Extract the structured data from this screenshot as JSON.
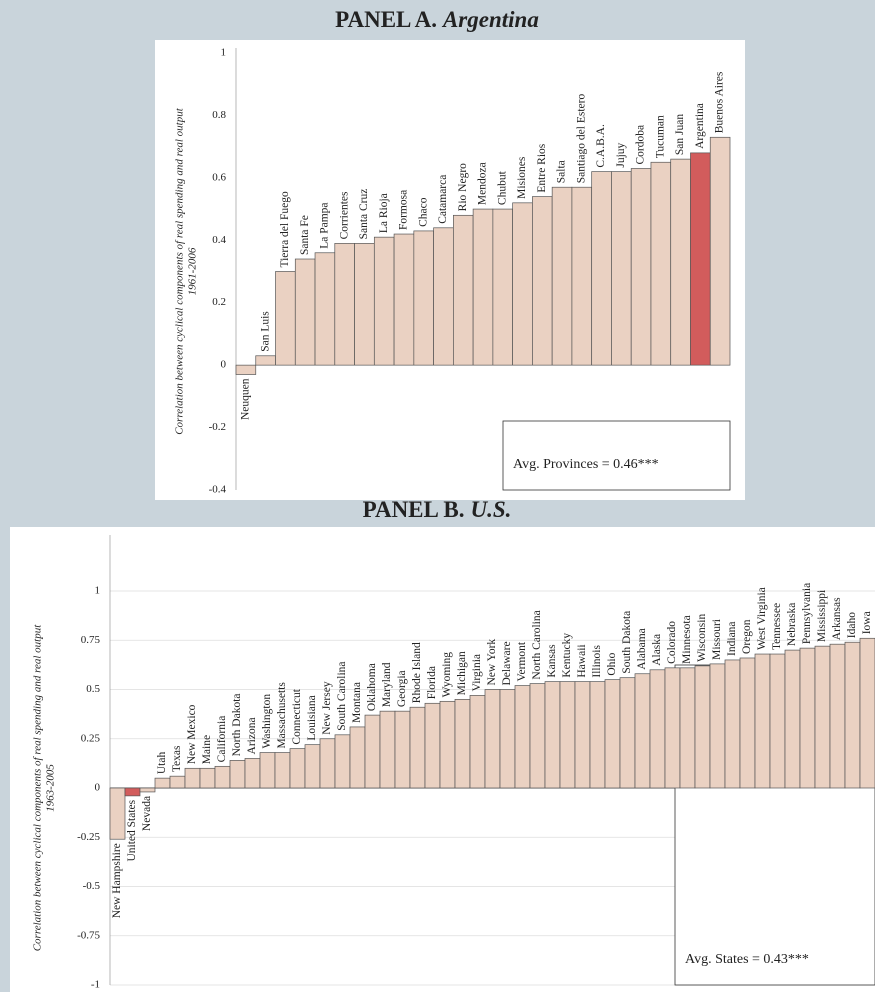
{
  "chart_data": [
    {
      "type": "bar",
      "title": "PANEL A.",
      "title_italic": "Argentina",
      "ylabel": [
        "Correlation between cyclical components of  real spending and real output",
        "1961-2006"
      ],
      "categories": [
        "Neuquen",
        "San Luis",
        "Tierra del Fuego",
        "Santa Fe",
        "La Pampa",
        "Corrientes",
        "Santa Cruz",
        "La Rioja",
        "Formosa",
        "Chaco",
        "Catamarca",
        "Rio Negro",
        "Mendoza",
        "Chubut",
        "Misiones",
        "Entre Rios",
        "Salta",
        "Santiago del Estero",
        "C.A.B.A.",
        "Jujuy",
        "Cordoba",
        "Tucuman",
        "San Juan",
        "Argentina",
        "Buenos Aires"
      ],
      "values": [
        -0.03,
        0.03,
        0.3,
        0.34,
        0.36,
        0.39,
        0.39,
        0.41,
        0.42,
        0.43,
        0.44,
        0.48,
        0.5,
        0.5,
        0.52,
        0.54,
        0.57,
        0.57,
        0.62,
        0.62,
        0.63,
        0.65,
        0.66,
        0.68,
        0.73
      ],
      "colors": [
        "#ead1c2",
        "#ead1c2",
        "#ead1c2",
        "#ead1c2",
        "#ead1c2",
        "#ead1c2",
        "#ead1c2",
        "#ead1c2",
        "#ead1c2",
        "#ead1c2",
        "#ead1c2",
        "#ead1c2",
        "#ead1c2",
        "#ead1c2",
        "#ead1c2",
        "#ead1c2",
        "#ead1c2",
        "#ead1c2",
        "#ead1c2",
        "#ead1c2",
        "#ead1c2",
        "#ead1c2",
        "#ead1c2",
        "#d25c5c",
        "#ead1c2"
      ],
      "ylim": [
        -0.4,
        1
      ],
      "yticks": [
        -0.4,
        -0.2,
        0,
        0.2,
        0.4,
        0.6,
        0.8,
        1
      ],
      "grid": false,
      "annotation": "Avg. Provinces = 0.46***"
    },
    {
      "type": "bar",
      "title": "PANEL B.",
      "title_italic": "U.S.",
      "ylabel": [
        "Correlation between cyclical components of  real spending and real output",
        "1963-2005"
      ],
      "categories": [
        "New Hampshire",
        "United States",
        "Nevada",
        "Utah",
        "Texas",
        "New Mexico",
        "Maine",
        "California",
        "North Dakota",
        "Arizona",
        "Washington",
        "Massachusetts",
        "Connecticut",
        "Louisiana",
        "New Jersey",
        "South Carolina",
        "Montana",
        "Oklahoma",
        "Maryland",
        "Georgia",
        "Rhode Island",
        "Florida",
        "Wyoming",
        "Michigan",
        "Virginia",
        "New York",
        "Delaware",
        "Vermont",
        "North Carolina",
        "Kansas",
        "Kentucky",
        "Hawaii",
        "Illinois",
        "Ohio",
        "South Dakota",
        "Alabama",
        "Alaska",
        "Colorado",
        "Minnesota",
        "Wisconsin",
        "Missouri",
        "Indiana",
        "Oregon",
        "West Virginia",
        "Tennessee",
        "Nebraska",
        "Pennsylvania",
        "Mississippi",
        "Arkansas",
        "Idaho",
        "Iowa"
      ],
      "values": [
        -0.26,
        -0.04,
        -0.02,
        0.05,
        0.06,
        0.1,
        0.1,
        0.11,
        0.14,
        0.15,
        0.18,
        0.18,
        0.2,
        0.22,
        0.25,
        0.27,
        0.31,
        0.37,
        0.39,
        0.39,
        0.41,
        0.43,
        0.44,
        0.45,
        0.47,
        0.5,
        0.5,
        0.52,
        0.53,
        0.54,
        0.54,
        0.54,
        0.54,
        0.55,
        0.56,
        0.58,
        0.6,
        0.61,
        0.61,
        0.62,
        0.63,
        0.65,
        0.66,
        0.68,
        0.68,
        0.7,
        0.71,
        0.72,
        0.73,
        0.74,
        0.76
      ],
      "colors": [
        "#ead1c2",
        "#d25c5c",
        "#ead1c2",
        "#ead1c2",
        "#ead1c2",
        "#ead1c2",
        "#ead1c2",
        "#ead1c2",
        "#ead1c2",
        "#ead1c2",
        "#ead1c2",
        "#ead1c2",
        "#ead1c2",
        "#ead1c2",
        "#ead1c2",
        "#ead1c2",
        "#ead1c2",
        "#ead1c2",
        "#ead1c2",
        "#ead1c2",
        "#ead1c2",
        "#ead1c2",
        "#ead1c2",
        "#ead1c2",
        "#ead1c2",
        "#ead1c2",
        "#ead1c2",
        "#ead1c2",
        "#ead1c2",
        "#ead1c2",
        "#ead1c2",
        "#ead1c2",
        "#ead1c2",
        "#ead1c2",
        "#ead1c2",
        "#ead1c2",
        "#ead1c2",
        "#ead1c2",
        "#ead1c2",
        "#ead1c2",
        "#ead1c2",
        "#ead1c2",
        "#ead1c2",
        "#ead1c2",
        "#ead1c2",
        "#ead1c2",
        "#ead1c2",
        "#ead1c2",
        "#ead1c2",
        "#ead1c2",
        "#ead1c2"
      ],
      "ylim": [
        -1,
        1
      ],
      "yticks": [
        -1,
        -0.75,
        -0.5,
        -0.25,
        0,
        0.25,
        0.5,
        0.75,
        1
      ],
      "grid": true,
      "annotation": "Avg. States = 0.43***"
    }
  ]
}
